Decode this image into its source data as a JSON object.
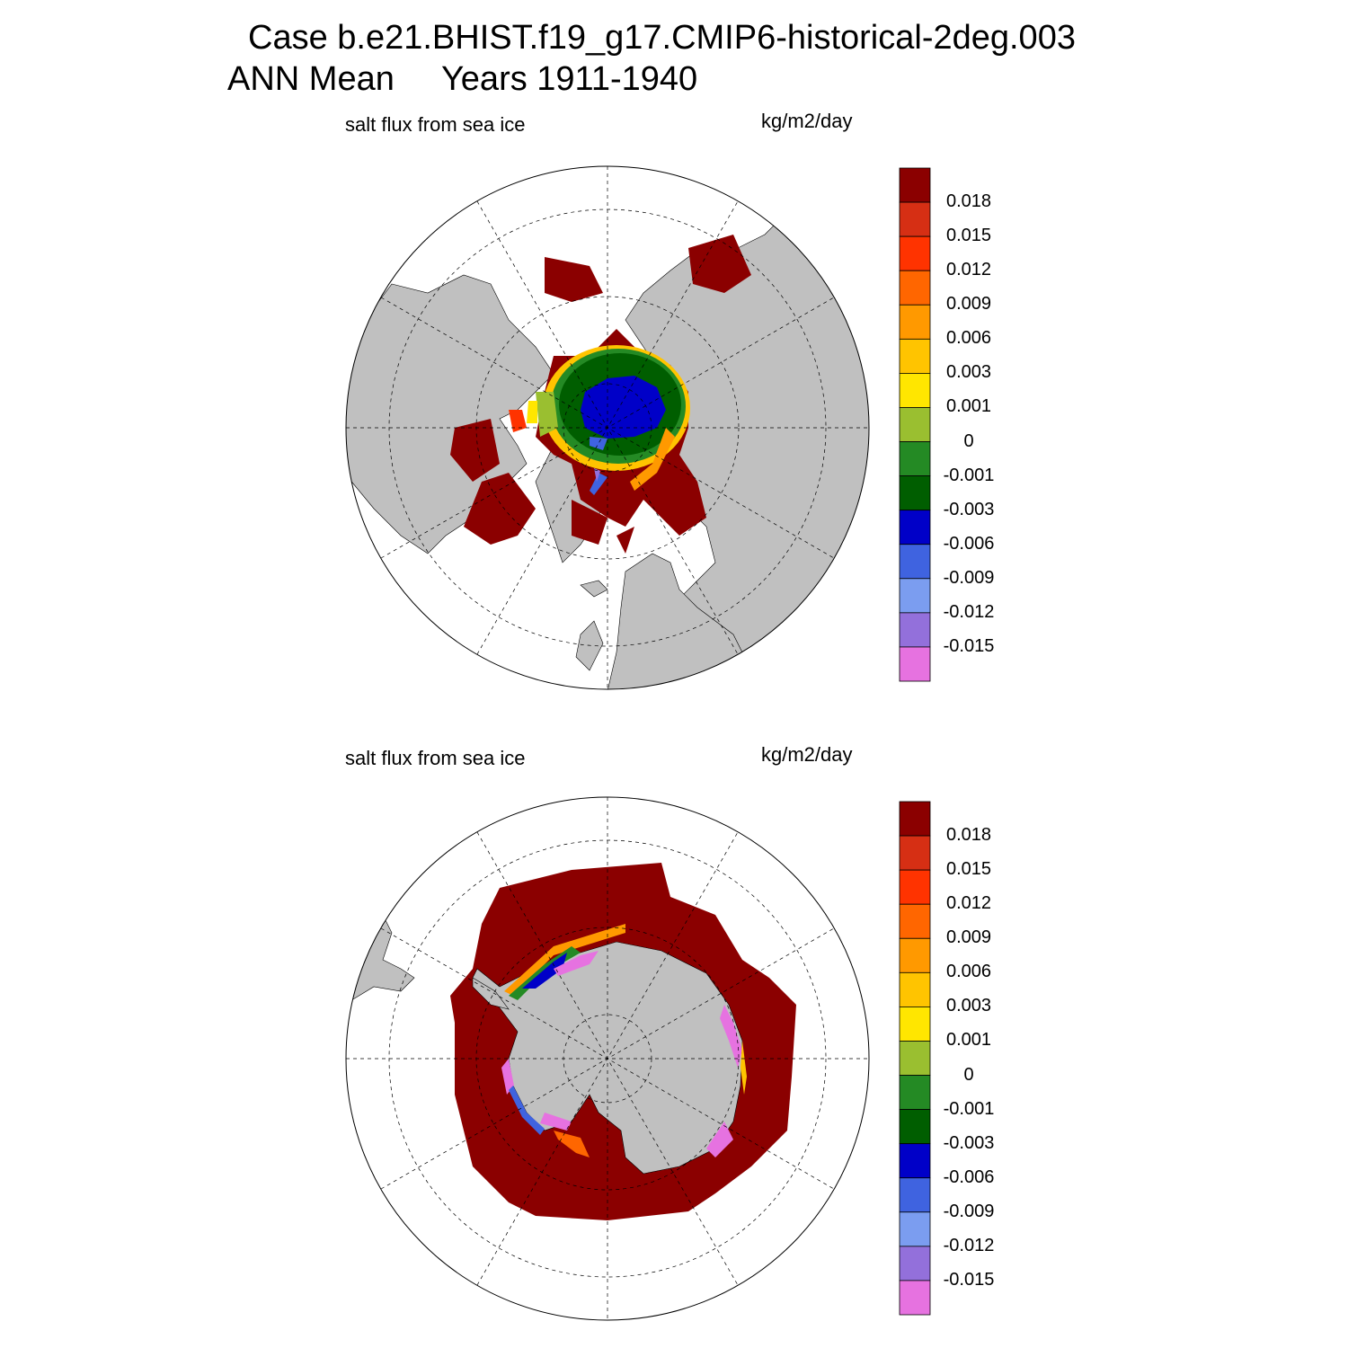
{
  "header": {
    "case_line": "Case b.e21.BHIST.f19_g17.CMIP6-historical-2deg.003",
    "period_line": "ANN Mean     Years 1911-1940"
  },
  "panels": [
    {
      "id": "north",
      "variable": "salt flux from sea ice",
      "units": "kg/m2/day",
      "hemisphere": "Northern"
    },
    {
      "id": "south",
      "variable": "salt flux from sea ice",
      "units": "kg/m2/day",
      "hemisphere": "Southern"
    }
  ],
  "colorbar": {
    "labels": [
      "0.018",
      "0.015",
      "0.012",
      "0.009",
      "0.006",
      "0.003",
      "0.001",
      "0",
      "-0.001",
      "-0.003",
      "-0.006",
      "-0.009",
      "-0.012",
      "-0.015"
    ],
    "colors": [
      "#8b0000",
      "#d62f14",
      "#ff3300",
      "#ff6600",
      "#ff9900",
      "#ffc400",
      "#ffe600",
      "#9abf30",
      "#248a24",
      "#005e00",
      "#0000c8",
      "#3f63e0",
      "#7b9df0",
      "#9370db",
      "#e672e0"
    ]
  },
  "colors": {
    "land": "#c0c0c0",
    "ocean": "#ffffff",
    "open_water_flux": "#8b0000"
  }
}
